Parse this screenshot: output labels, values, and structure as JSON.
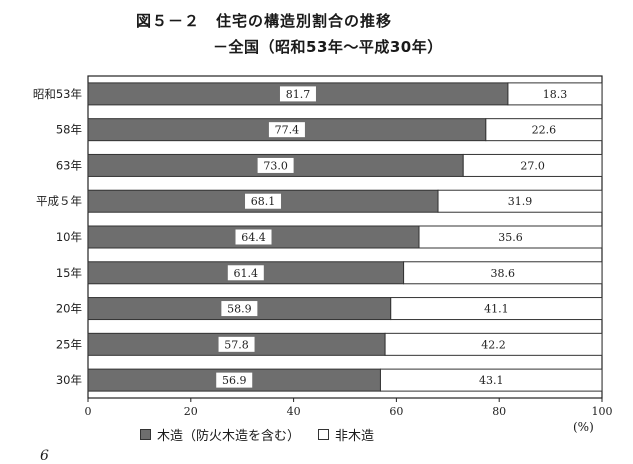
{
  "title": "図５－２　住宅の構造別割合の推移",
  "subtitle": "－全国（昭和53年～平成30年）",
  "unit_label": "(%)",
  "footer_mark": "6",
  "colors": {
    "wooden": "#6e6e6e",
    "non_wooden": "#ffffff",
    "border": "#333333"
  },
  "chart_data": {
    "type": "bar",
    "orientation": "horizontal",
    "stacked": true,
    "categories": [
      "昭和53年",
      "58年",
      "63年",
      "平成５年",
      "10年",
      "15年",
      "20年",
      "25年",
      "30年"
    ],
    "series": [
      {
        "name": "木造（防火木造を含む）",
        "values": [
          81.7,
          77.4,
          73.0,
          68.1,
          64.4,
          61.4,
          58.9,
          57.8,
          56.9
        ],
        "labels": [
          "81.7",
          "77.4",
          "73.0",
          "68.1",
          "64.4",
          "61.4",
          "58.9",
          "57.8",
          "56.9"
        ]
      },
      {
        "name": "非木造",
        "values": [
          18.3,
          22.6,
          27.0,
          31.9,
          35.6,
          38.6,
          41.1,
          42.2,
          43.1
        ],
        "labels": [
          "18.3",
          "22.6",
          "27.0",
          "31.9",
          "35.6",
          "38.6",
          "41.1",
          "42.2",
          "43.1"
        ]
      }
    ],
    "xlim": [
      0,
      100
    ],
    "xticks": [
      "0",
      "20",
      "40",
      "60",
      "80",
      "100"
    ],
    "legend_position": "bottom"
  }
}
